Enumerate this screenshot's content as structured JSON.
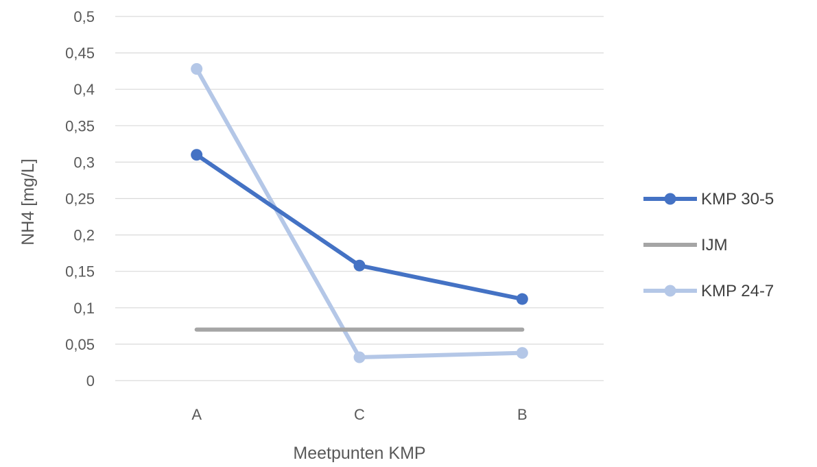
{
  "chart_data": {
    "type": "line",
    "title": "",
    "xlabel": "Meetpunten KMP",
    "ylabel": "NH4 [mg/L]",
    "categories": [
      "A",
      "C",
      "B"
    ],
    "ylim": [
      0,
      0.5
    ],
    "yticks": [
      0,
      0.05,
      0.1,
      0.15,
      0.2,
      0.25,
      0.3,
      0.35,
      0.4,
      0.45,
      0.5
    ],
    "ytick_labels": [
      "0",
      "0,05",
      "0,1",
      "0,15",
      "0,2",
      "0,25",
      "0,3",
      "0,35",
      "0,4",
      "0,45",
      "0,5"
    ],
    "grid": true,
    "legend_position": "right",
    "series": [
      {
        "name": "KMP 30-5",
        "values": [
          0.31,
          0.158,
          0.112
        ],
        "color": "#4472C4",
        "markers": true
      },
      {
        "name": "IJM",
        "values": [
          0.07,
          0.07,
          0.07
        ],
        "color": "#A5A5A5",
        "markers": false
      },
      {
        "name": "KMP 24-7",
        "values": [
          0.428,
          0.032,
          0.038
        ],
        "color": "#B4C7E7",
        "markers": true
      }
    ]
  }
}
